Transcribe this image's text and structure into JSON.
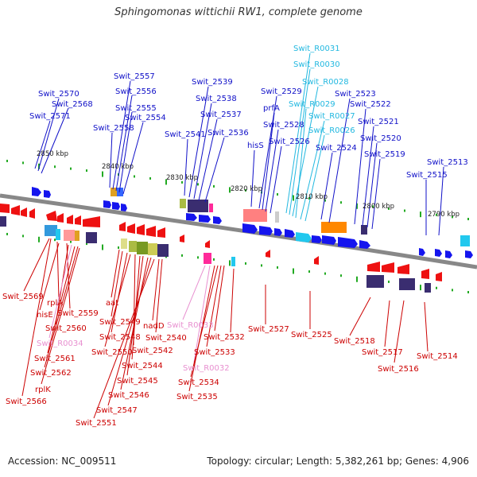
{
  "title": "Sphingomonas wittichii RW1, complete genome",
  "footer": {
    "accession": "Accession: NC_009511",
    "summary": "Topology: circular; Length: 5,382,261 bp; Genes: 4,906"
  },
  "colors": {
    "forward_label": "#1010c8",
    "reverse_label": "#cc0000",
    "rna_forward_label": "#22b8e0",
    "rna_reverse_label": "#e890d0",
    "backbone": "#888888",
    "tick": "#22aa22"
  },
  "scale_labels": [
    "2850 kbp",
    "2840 kbp",
    "2830 kbp",
    "2820 kbp",
    "2810 kbp",
    "2800 kbp",
    "2790 kbp"
  ],
  "top_labels": [
    "Swit_R0031",
    "Swit_R0030",
    "Swit_2557",
    "Swit_R0028",
    "Swit_2539",
    "Swit_2570",
    "Swit_2556",
    "Swit_2529",
    "Swit_2523",
    "Swit_2538",
    "Swit_2568",
    "Swit_2555",
    "prfA",
    "Swit_R0029",
    "Swit_2522",
    "Swit_R0027",
    "Swit_2571",
    "Swit_2554",
    "Swit_2537",
    "Swit_2528",
    "Swit_2521",
    "Swit_R0026",
    "Swit_2558",
    "Swit_2541",
    "Swit_2536",
    "Swit_2520",
    "hisS",
    "Swit_2526",
    "Swit_2524",
    "Swit_2519",
    "Swit_2513",
    "Swit_2515"
  ],
  "bottom_labels": [
    "Swit_2569",
    "rplA",
    "aat",
    "hisE",
    "Swit_2559",
    "Swit_2549",
    "Swit_2560",
    "Swit_R0033",
    "nadD",
    "Swit_2527",
    "Swit_2525",
    "Swit_2532",
    "Swit_2548",
    "Swit_2540",
    "Swit_2518",
    "Swit_R0034",
    "Swit_2542",
    "Swit_2533",
    "Swit_2550",
    "Swit_2517",
    "Swit_2514",
    "Swit_2561",
    "Swit_2544",
    "Swit_R0032",
    "Swit_2516",
    "Swit_2562",
    "Swit_2545",
    "Swit_2534",
    "rplK",
    "Swit_2546",
    "Swit_2535",
    "Swit_2566",
    "Swit_2547",
    "Swit_2551"
  ]
}
